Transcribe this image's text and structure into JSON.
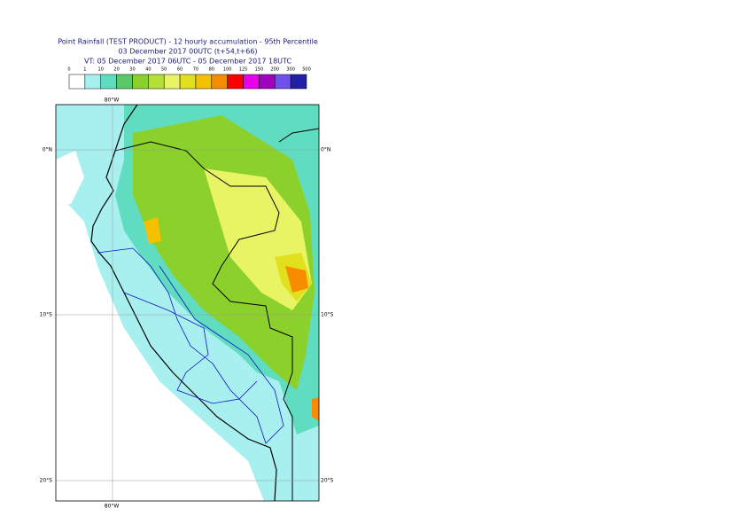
{
  "header": {
    "lines": [
      "Point Rainfall (TEST PRODUCT) - 12 hourly accumulation - 95th Percentile",
      "03 December 2017 00UTC (t+54,t+66)",
      "VT: 05 December 2017 06UTC - 05 December 2017 18UTC"
    ]
  },
  "legend": {
    "labels": [
      "0",
      "1",
      "10",
      "20",
      "30",
      "40",
      "50",
      "60",
      "70",
      "80",
      "100",
      "125",
      "150",
      "200",
      "300",
      "500"
    ],
    "colors": [
      "#ffffff",
      "#a8f0f0",
      "#60dcc0",
      "#5cc86c",
      "#8cd02c",
      "#b4e034",
      "#e8f464",
      "#e0e01c",
      "#f4c000",
      "#f88c00",
      "#ff0000",
      "#e800e8",
      "#a000c0",
      "#7050f0",
      "#2020a8",
      "#0a0a50"
    ]
  },
  "map": {
    "lat_labels": [
      "0°N",
      "10°S",
      "20°S"
    ],
    "lon_labels": [
      "80°W"
    ]
  }
}
